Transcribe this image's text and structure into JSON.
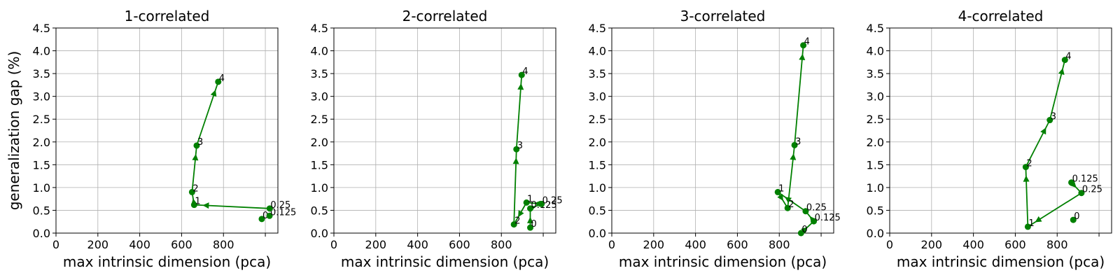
{
  "chart_data": [
    {
      "type": "line",
      "title": "1-correlated",
      "xlabel": "max intrinsic dimension (pca)",
      "ylabel": "generalization gap (%)",
      "xlim": [
        0,
        1060
      ],
      "ylim": [
        0,
        4.5
      ],
      "xticks": [
        0,
        200,
        400,
        600,
        800
      ],
      "yticks": [
        0.0,
        0.5,
        1.0,
        1.5,
        2.0,
        2.5,
        3.0,
        3.5,
        4.0,
        4.5
      ],
      "grid": true,
      "color": "#008000",
      "series": [
        {
          "points": [
            {
              "label": "0",
              "x": 983,
              "y": 0.31
            },
            {
              "label": "0.125",
              "x": 1020,
              "y": 0.38
            },
            {
              "label": "0.25",
              "x": 1021,
              "y": 0.54
            },
            {
              "label": "1",
              "x": 660,
              "y": 0.62
            },
            {
              "label": "2",
              "x": 650,
              "y": 0.9
            },
            {
              "label": "3",
              "x": 672,
              "y": 1.92
            },
            {
              "label": "4",
              "x": 775,
              "y": 3.32
            }
          ],
          "arrows": [
            [
              2,
              3
            ],
            [
              3,
              4
            ],
            [
              4,
              5
            ],
            [
              5,
              6
            ]
          ]
        }
      ]
    },
    {
      "type": "line",
      "title": "2-correlated",
      "xlabel": "max intrinsic dimension (pca)",
      "ylabel": "",
      "xlim": [
        0,
        1060
      ],
      "ylim": [
        0,
        4.5
      ],
      "xticks": [
        0,
        200,
        400,
        600,
        800
      ],
      "yticks": [
        0.0,
        0.5,
        1.0,
        1.5,
        2.0,
        2.5,
        3.0,
        3.5,
        4.0,
        4.5
      ],
      "grid": true,
      "color": "#008000",
      "series": [
        {
          "points": [
            {
              "label": "0",
              "x": 938,
              "y": 0.12
            },
            {
              "label": "0.125",
              "x": 938,
              "y": 0.54
            },
            {
              "label": "0.25",
              "x": 992,
              "y": 0.64
            },
            {
              "label": "1",
              "x": 920,
              "y": 0.67
            },
            {
              "label": "2",
              "x": 860,
              "y": 0.19
            },
            {
              "label": "3",
              "x": 872,
              "y": 1.84
            },
            {
              "label": "4",
              "x": 897,
              "y": 3.47
            }
          ],
          "arrows": [
            [
              0,
              1
            ],
            [
              1,
              2
            ],
            [
              2,
              3
            ],
            [
              3,
              4
            ],
            [
              4,
              5
            ],
            [
              5,
              6
            ]
          ]
        }
      ]
    },
    {
      "type": "line",
      "title": "3-correlated",
      "xlabel": "max intrinsic dimension (pca)",
      "ylabel": "",
      "xlim": [
        0,
        1060
      ],
      "ylim": [
        0,
        4.5
      ],
      "xticks": [
        0,
        200,
        400,
        600,
        800
      ],
      "yticks": [
        0.0,
        0.5,
        1.0,
        1.5,
        2.0,
        2.5,
        3.0,
        3.5,
        4.0,
        4.5
      ],
      "grid": true,
      "color": "#008000",
      "series": [
        {
          "points": [
            {
              "label": "0",
              "x": 904,
              "y": 0.0
            },
            {
              "label": "0.125",
              "x": 965,
              "y": 0.26
            },
            {
              "label": "0.25",
              "x": 926,
              "y": 0.48
            },
            {
              "label": "1",
              "x": 793,
              "y": 0.9
            },
            {
              "label": "2",
              "x": 840,
              "y": 0.55
            },
            {
              "label": "3",
              "x": 873,
              "y": 1.93
            },
            {
              "label": "4",
              "x": 915,
              "y": 4.12
            }
          ],
          "arrows": [
            [
              0,
              1
            ],
            [
              1,
              2
            ],
            [
              2,
              3
            ],
            [
              3,
              4
            ],
            [
              4,
              5
            ],
            [
              5,
              6
            ]
          ]
        }
      ]
    },
    {
      "type": "line",
      "title": "4-correlated",
      "xlabel": "max intrinsic dimension (pca)",
      "ylabel": "",
      "xlim": [
        0,
        1060
      ],
      "ylim": [
        0,
        4.5
      ],
      "xticks": [
        0,
        200,
        400,
        600,
        800
      ],
      "yticks": [
        0.0,
        0.5,
        1.0,
        1.5,
        2.0,
        2.5,
        3.0,
        3.5,
        4.0,
        4.5
      ],
      "grid": true,
      "color": "#008000",
      "series": [
        {
          "points": [
            {
              "label": "0",
              "x": 877,
              "y": 0.29
            },
            {
              "label": "0.125",
              "x": 868,
              "y": 1.11
            },
            {
              "label": "0.25",
              "x": 916,
              "y": 0.88
            },
            {
              "label": "1",
              "x": 660,
              "y": 0.14
            },
            {
              "label": "2",
              "x": 650,
              "y": 1.45
            },
            {
              "label": "3",
              "x": 765,
              "y": 2.48
            },
            {
              "label": "4",
              "x": 837,
              "y": 3.8
            }
          ],
          "arrows": [
            [
              1,
              2
            ],
            [
              2,
              3
            ],
            [
              3,
              4
            ],
            [
              4,
              5
            ],
            [
              5,
              6
            ]
          ]
        }
      ]
    }
  ]
}
